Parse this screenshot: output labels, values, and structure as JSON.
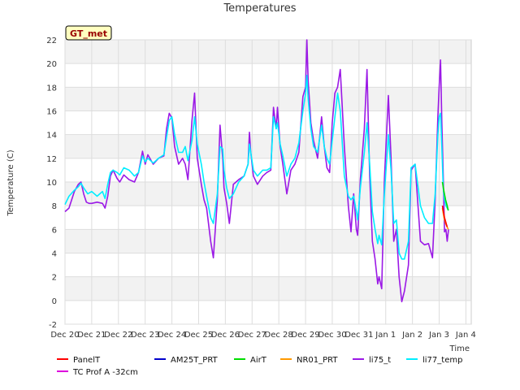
{
  "chart_data": {
    "type": "line",
    "title": "Temperatures",
    "xlabel": "Time",
    "ylabel": "Temperature (C)",
    "badge": "GT_met",
    "ylim": [
      -2,
      22
    ],
    "xlim": [
      0,
      15.2
    ],
    "yticks": [
      -2,
      0,
      2,
      4,
      6,
      8,
      10,
      12,
      14,
      16,
      18,
      20,
      22
    ],
    "xticks": [
      {
        "x": 0,
        "label": "Dec 20"
      },
      {
        "x": 1,
        "label": "Dec 21"
      },
      {
        "x": 2,
        "label": "Dec 22"
      },
      {
        "x": 3,
        "label": "Dec 23"
      },
      {
        "x": 4,
        "label": "Dec 24"
      },
      {
        "x": 5,
        "label": "Dec 25"
      },
      {
        "x": 6,
        "label": "Dec 26"
      },
      {
        "x": 7,
        "label": "Dec 27"
      },
      {
        "x": 8,
        "label": "Dec 28"
      },
      {
        "x": 9,
        "label": "Dec 29"
      },
      {
        "x": 10,
        "label": "Dec 30"
      },
      {
        "x": 11,
        "label": "Dec 31"
      },
      {
        "x": 12,
        "label": "Jan 1"
      },
      {
        "x": 13,
        "label": "Jan 2"
      },
      {
        "x": 14,
        "label": "Jan 3"
      },
      {
        "x": 15,
        "label": "Jan 4"
      }
    ],
    "series": [
      {
        "name": "PanelT",
        "color": "#ff0000",
        "x": [
          14.12,
          14.2,
          14.26,
          14.3
        ],
        "y": [
          8.0,
          7.0,
          6.5,
          6.2
        ]
      },
      {
        "name": "AM25T_PRT",
        "color": "#0000cc",
        "x": [],
        "y": []
      },
      {
        "name": "AirT",
        "color": "#00dd00",
        "x": [
          14.12,
          14.18,
          14.24,
          14.3,
          14.34
        ],
        "y": [
          10.0,
          9.2,
          8.5,
          8.0,
          7.6
        ]
      },
      {
        "name": "NR01_PRT",
        "color": "#ff9900",
        "x": [
          14.12,
          14.18,
          14.24,
          14.3,
          14.34
        ],
        "y": [
          7.8,
          7.0,
          6.5,
          6.2,
          6.0
        ]
      },
      {
        "name": "li75_t",
        "color": "#9b19e6",
        "x": [
          0.0,
          0.15,
          0.35,
          0.5,
          0.6,
          0.7,
          0.8,
          0.9,
          1.0,
          1.2,
          1.4,
          1.5,
          1.6,
          1.7,
          1.8,
          1.95,
          2.05,
          2.2,
          2.4,
          2.6,
          2.75,
          2.9,
          3.0,
          3.1,
          3.3,
          3.5,
          3.7,
          3.8,
          3.9,
          4.0,
          4.1,
          4.25,
          4.4,
          4.5,
          4.6,
          4.75,
          4.85,
          4.95,
          5.1,
          5.2,
          5.3,
          5.45,
          5.55,
          5.7,
          5.8,
          5.9,
          5.95,
          6.05,
          6.15,
          6.3,
          6.5,
          6.7,
          6.85,
          6.9,
          6.95,
          7.05,
          7.2,
          7.4,
          7.55,
          7.7,
          7.8,
          7.9,
          7.95,
          8.05,
          8.15,
          8.3,
          8.45,
          8.6,
          8.75,
          8.9,
          9.0,
          9.05,
          9.1,
          9.2,
          9.3,
          9.45,
          9.6,
          9.7,
          9.8,
          9.9,
          10.0,
          10.1,
          10.2,
          10.3,
          10.45,
          10.6,
          10.7,
          10.8,
          10.9,
          10.95,
          11.05,
          11.2,
          11.3,
          11.4,
          11.5,
          11.6,
          11.7,
          11.75,
          11.85,
          11.95,
          12.1,
          12.2,
          12.3,
          12.4,
          12.5,
          12.6,
          12.7,
          12.85,
          12.95,
          13.1,
          13.3,
          13.45,
          13.6,
          13.75,
          13.85,
          13.95,
          14.0,
          14.05,
          14.1,
          14.15,
          14.2,
          14.25,
          14.3,
          14.35
        ],
        "y": [
          7.5,
          7.8,
          9.2,
          9.8,
          10.0,
          9.0,
          8.3,
          8.2,
          8.2,
          8.3,
          8.2,
          7.8,
          8.8,
          10.5,
          11.0,
          10.3,
          10.0,
          10.6,
          10.2,
          10.0,
          10.8,
          12.6,
          11.5,
          12.3,
          11.5,
          12.0,
          12.2,
          14.5,
          15.8,
          15.4,
          13.0,
          11.5,
          12.0,
          11.5,
          10.2,
          15.2,
          17.5,
          12.0,
          9.8,
          8.5,
          7.8,
          5.0,
          3.6,
          8.5,
          14.8,
          12.0,
          9.5,
          8.2,
          6.5,
          9.8,
          10.2,
          10.5,
          11.5,
          14.2,
          12.5,
          10.5,
          9.8,
          10.5,
          10.8,
          11.0,
          16.3,
          14.5,
          16.3,
          13.0,
          11.5,
          9.0,
          11.0,
          11.5,
          12.5,
          17.2,
          18.0,
          22.0,
          18.5,
          15.0,
          13.5,
          12.0,
          15.5,
          13.0,
          11.2,
          10.8,
          15.0,
          17.5,
          18.0,
          19.5,
          13.0,
          8.0,
          5.8,
          9.0,
          6.0,
          5.5,
          10.2,
          14.5,
          19.5,
          10.5,
          5.0,
          3.5,
          1.4,
          2.0,
          1.0,
          10.2,
          17.3,
          12.0,
          5.0,
          6.0,
          2.0,
          -0.1,
          0.8,
          3.0,
          11.0,
          11.5,
          5.0,
          4.7,
          4.8,
          3.6,
          8.5,
          15.5,
          18.0,
          20.3,
          15.0,
          10.6,
          5.8,
          6.0,
          5.0,
          6.0
        ]
      },
      {
        "name": "li77_temp",
        "color": "#00eeff",
        "x": [
          0.0,
          0.15,
          0.35,
          0.5,
          0.6,
          0.7,
          0.85,
          1.0,
          1.2,
          1.4,
          1.5,
          1.6,
          1.7,
          1.8,
          1.95,
          2.05,
          2.2,
          2.4,
          2.6,
          2.75,
          2.9,
          3.0,
          3.1,
          3.3,
          3.5,
          3.7,
          3.8,
          3.9,
          4.0,
          4.1,
          4.25,
          4.4,
          4.5,
          4.6,
          4.75,
          4.85,
          4.95,
          5.1,
          5.2,
          5.3,
          5.45,
          5.55,
          5.7,
          5.8,
          5.9,
          5.95,
          6.05,
          6.15,
          6.3,
          6.5,
          6.7,
          6.85,
          6.9,
          6.95,
          7.05,
          7.2,
          7.4,
          7.55,
          7.7,
          7.8,
          7.9,
          7.95,
          8.05,
          8.15,
          8.3,
          8.45,
          8.6,
          8.75,
          8.9,
          9.0,
          9.05,
          9.1,
          9.2,
          9.3,
          9.45,
          9.6,
          9.7,
          9.8,
          9.9,
          10.0,
          10.1,
          10.2,
          10.3,
          10.45,
          10.6,
          10.7,
          10.8,
          10.9,
          10.95,
          11.05,
          11.2,
          11.3,
          11.4,
          11.5,
          11.6,
          11.7,
          11.75,
          11.85,
          11.95,
          12.1,
          12.2,
          12.3,
          12.4,
          12.5,
          12.6,
          12.7,
          12.85,
          12.95,
          13.1,
          13.3,
          13.45,
          13.6,
          13.75,
          13.85,
          13.95,
          14.0,
          14.05,
          14.1,
          14.15,
          14.2,
          14.25,
          14.3,
          14.35
        ],
        "y": [
          8.1,
          8.8,
          9.3,
          9.6,
          9.9,
          9.5,
          9.0,
          9.2,
          8.8,
          9.2,
          8.6,
          9.8,
          10.8,
          11.0,
          10.8,
          10.6,
          11.2,
          11.0,
          10.5,
          10.8,
          12.2,
          11.7,
          12.0,
          11.6,
          12.0,
          12.3,
          13.8,
          15.2,
          15.5,
          14.0,
          12.5,
          12.5,
          13.0,
          11.8,
          13.5,
          15.5,
          13.2,
          11.5,
          10.0,
          8.8,
          7.0,
          6.5,
          9.0,
          13.0,
          12.8,
          11.0,
          9.5,
          8.6,
          9.0,
          10.0,
          10.5,
          11.5,
          13.2,
          12.5,
          11.0,
          10.5,
          11.0,
          11.0,
          11.2,
          15.5,
          14.5,
          15.0,
          13.2,
          12.2,
          10.5,
          11.5,
          12.0,
          13.3,
          16.0,
          17.5,
          19.0,
          17.0,
          14.5,
          13.0,
          12.5,
          14.8,
          13.0,
          12.0,
          11.5,
          13.5,
          15.5,
          17.5,
          16.0,
          10.5,
          8.8,
          8.5,
          8.8,
          7.5,
          6.8,
          9.5,
          12.5,
          15.0,
          11.5,
          7.5,
          6.0,
          4.8,
          5.5,
          4.7,
          9.0,
          14.0,
          11.0,
          6.5,
          6.8,
          4.0,
          3.5,
          3.5,
          5.0,
          11.2,
          11.5,
          8.0,
          7.0,
          6.5,
          6.5,
          9.0,
          14.0,
          15.5,
          15.8,
          13.0,
          9.5,
          8.5,
          8.0,
          7.8,
          7.6
        ]
      }
    ]
  }
}
